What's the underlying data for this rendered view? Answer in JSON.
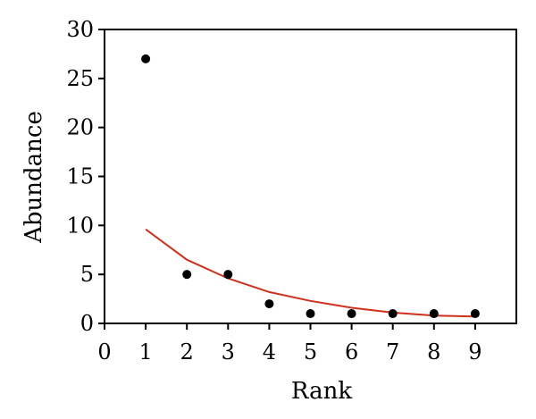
{
  "chart_data": {
    "type": "scatter",
    "xlabel": "Rank",
    "ylabel": "Abundance",
    "xlim": [
      0,
      10
    ],
    "ylim": [
      0,
      30
    ],
    "x_ticks": [
      0,
      1,
      2,
      3,
      4,
      5,
      6,
      7,
      8,
      9
    ],
    "y_ticks": [
      0,
      5,
      10,
      15,
      20,
      25,
      30
    ],
    "grid": false,
    "series": [
      {
        "type": "scatter",
        "color": "#000000",
        "x": [
          1,
          2,
          3,
          4,
          5,
          6,
          7,
          8,
          9
        ],
        "y": [
          27,
          5,
          5,
          2,
          1,
          1,
          1,
          1,
          1
        ]
      },
      {
        "type": "line",
        "color": "#d0311d",
        "x": [
          1,
          2,
          3,
          4,
          5,
          6,
          7,
          8,
          9
        ],
        "y": [
          9.6,
          6.5,
          4.6,
          3.2,
          2.3,
          1.6,
          1.1,
          0.8,
          0.7
        ]
      }
    ]
  }
}
